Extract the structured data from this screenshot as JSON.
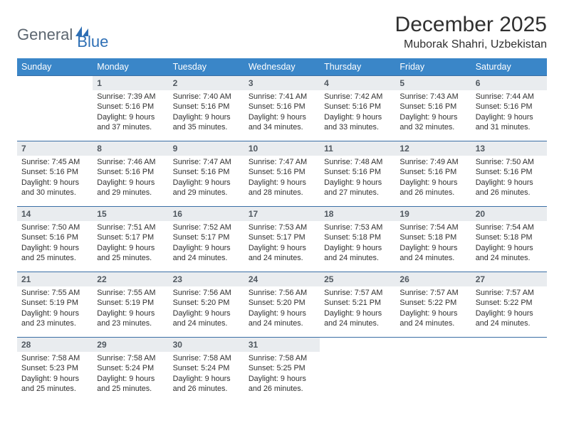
{
  "brand": {
    "part1": "General",
    "part2": "Blue"
  },
  "title": "December 2025",
  "location": "Muborak Shahri, Uzbekistan",
  "dayHeaders": [
    "Sunday",
    "Monday",
    "Tuesday",
    "Wednesday",
    "Thursday",
    "Friday",
    "Saturday"
  ],
  "colors": {
    "headerBg": "#3a86c8",
    "headerText": "#ffffff",
    "dayNumBg": "#e9ecef",
    "dayNumText": "#505860",
    "rowBorder": "#3a6fa5",
    "bodyText": "#303030",
    "logoGray": "#5c6670",
    "logoBlue": "#2e6fb5",
    "pageBg": "#ffffff"
  },
  "typography": {
    "titleFontSize": 30,
    "locationFontSize": 16,
    "headerFontSize": 12.5,
    "dayNumFontSize": 12,
    "cellFontSize": 10.8
  },
  "layout": {
    "firstDayOffset": 1,
    "daysInMonth": 31,
    "columns": 7,
    "rows": 5
  },
  "days": [
    {
      "n": 1,
      "sunrise": "7:39 AM",
      "sunset": "5:16 PM",
      "daylight": "9 hours and 37 minutes."
    },
    {
      "n": 2,
      "sunrise": "7:40 AM",
      "sunset": "5:16 PM",
      "daylight": "9 hours and 35 minutes."
    },
    {
      "n": 3,
      "sunrise": "7:41 AM",
      "sunset": "5:16 PM",
      "daylight": "9 hours and 34 minutes."
    },
    {
      "n": 4,
      "sunrise": "7:42 AM",
      "sunset": "5:16 PM",
      "daylight": "9 hours and 33 minutes."
    },
    {
      "n": 5,
      "sunrise": "7:43 AM",
      "sunset": "5:16 PM",
      "daylight": "9 hours and 32 minutes."
    },
    {
      "n": 6,
      "sunrise": "7:44 AM",
      "sunset": "5:16 PM",
      "daylight": "9 hours and 31 minutes."
    },
    {
      "n": 7,
      "sunrise": "7:45 AM",
      "sunset": "5:16 PM",
      "daylight": "9 hours and 30 minutes."
    },
    {
      "n": 8,
      "sunrise": "7:46 AM",
      "sunset": "5:16 PM",
      "daylight": "9 hours and 29 minutes."
    },
    {
      "n": 9,
      "sunrise": "7:47 AM",
      "sunset": "5:16 PM",
      "daylight": "9 hours and 29 minutes."
    },
    {
      "n": 10,
      "sunrise": "7:47 AM",
      "sunset": "5:16 PM",
      "daylight": "9 hours and 28 minutes."
    },
    {
      "n": 11,
      "sunrise": "7:48 AM",
      "sunset": "5:16 PM",
      "daylight": "9 hours and 27 minutes."
    },
    {
      "n": 12,
      "sunrise": "7:49 AM",
      "sunset": "5:16 PM",
      "daylight": "9 hours and 26 minutes."
    },
    {
      "n": 13,
      "sunrise": "7:50 AM",
      "sunset": "5:16 PM",
      "daylight": "9 hours and 26 minutes."
    },
    {
      "n": 14,
      "sunrise": "7:50 AM",
      "sunset": "5:16 PM",
      "daylight": "9 hours and 25 minutes."
    },
    {
      "n": 15,
      "sunrise": "7:51 AM",
      "sunset": "5:17 PM",
      "daylight": "9 hours and 25 minutes."
    },
    {
      "n": 16,
      "sunrise": "7:52 AM",
      "sunset": "5:17 PM",
      "daylight": "9 hours and 24 minutes."
    },
    {
      "n": 17,
      "sunrise": "7:53 AM",
      "sunset": "5:17 PM",
      "daylight": "9 hours and 24 minutes."
    },
    {
      "n": 18,
      "sunrise": "7:53 AM",
      "sunset": "5:18 PM",
      "daylight": "9 hours and 24 minutes."
    },
    {
      "n": 19,
      "sunrise": "7:54 AM",
      "sunset": "5:18 PM",
      "daylight": "9 hours and 24 minutes."
    },
    {
      "n": 20,
      "sunrise": "7:54 AM",
      "sunset": "5:18 PM",
      "daylight": "9 hours and 24 minutes."
    },
    {
      "n": 21,
      "sunrise": "7:55 AM",
      "sunset": "5:19 PM",
      "daylight": "9 hours and 23 minutes."
    },
    {
      "n": 22,
      "sunrise": "7:55 AM",
      "sunset": "5:19 PM",
      "daylight": "9 hours and 23 minutes."
    },
    {
      "n": 23,
      "sunrise": "7:56 AM",
      "sunset": "5:20 PM",
      "daylight": "9 hours and 24 minutes."
    },
    {
      "n": 24,
      "sunrise": "7:56 AM",
      "sunset": "5:20 PM",
      "daylight": "9 hours and 24 minutes."
    },
    {
      "n": 25,
      "sunrise": "7:57 AM",
      "sunset": "5:21 PM",
      "daylight": "9 hours and 24 minutes."
    },
    {
      "n": 26,
      "sunrise": "7:57 AM",
      "sunset": "5:22 PM",
      "daylight": "9 hours and 24 minutes."
    },
    {
      "n": 27,
      "sunrise": "7:57 AM",
      "sunset": "5:22 PM",
      "daylight": "9 hours and 24 minutes."
    },
    {
      "n": 28,
      "sunrise": "7:58 AM",
      "sunset": "5:23 PM",
      "daylight": "9 hours and 25 minutes."
    },
    {
      "n": 29,
      "sunrise": "7:58 AM",
      "sunset": "5:24 PM",
      "daylight": "9 hours and 25 minutes."
    },
    {
      "n": 30,
      "sunrise": "7:58 AM",
      "sunset": "5:24 PM",
      "daylight": "9 hours and 26 minutes."
    },
    {
      "n": 31,
      "sunrise": "7:58 AM",
      "sunset": "5:25 PM",
      "daylight": "9 hours and 26 minutes."
    }
  ],
  "labels": {
    "sunrise": "Sunrise:",
    "sunset": "Sunset:",
    "daylight": "Daylight:"
  }
}
